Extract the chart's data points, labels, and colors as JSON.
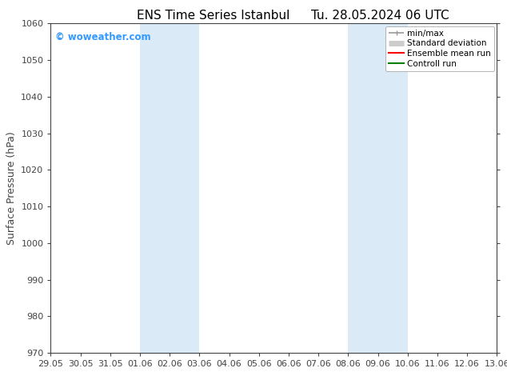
{
  "title_left": "ENS Time Series Istanbul",
  "title_right": "Tu. 28.05.2024 06 UTC",
  "ylabel": "Surface Pressure (hPa)",
  "ylim": [
    970,
    1060
  ],
  "yticks": [
    970,
    980,
    990,
    1000,
    1010,
    1020,
    1030,
    1040,
    1050,
    1060
  ],
  "xtick_labels": [
    "29.05",
    "30.05",
    "31.05",
    "01.06",
    "02.06",
    "03.06",
    "04.06",
    "05.06",
    "06.06",
    "07.06",
    "08.06",
    "09.06",
    "10.06",
    "11.06",
    "12.06",
    "13.06"
  ],
  "xtick_positions": [
    0,
    1,
    2,
    3,
    4,
    5,
    6,
    7,
    8,
    9,
    10,
    11,
    12,
    13,
    14,
    15
  ],
  "shaded_bands": [
    {
      "x_start": 3,
      "x_end": 5
    },
    {
      "x_start": 10,
      "x_end": 12
    }
  ],
  "shaded_color": "#daeaf7",
  "background_color": "#ffffff",
  "watermark_text": "© woweather.com",
  "watermark_color": "#3399ff",
  "legend_entries": [
    {
      "label": "min/max",
      "color": "#999999",
      "lw": 1.2
    },
    {
      "label": "Standard deviation",
      "color": "#cccccc",
      "lw": 5
    },
    {
      "label": "Ensemble mean run",
      "color": "#ff0000",
      "lw": 1.5
    },
    {
      "label": "Controll run",
      "color": "#008000",
      "lw": 1.5
    }
  ],
  "grid_color": "#cccccc",
  "spine_color": "#444444",
  "tick_color": "#444444",
  "title_fontsize": 11,
  "ylabel_fontsize": 9,
  "tick_fontsize": 8,
  "watermark_fontsize": 8.5
}
